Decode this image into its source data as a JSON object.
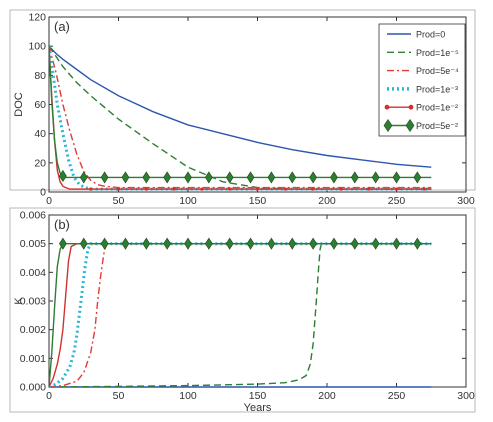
{
  "chart_data": [
    {
      "type": "line",
      "panel_label": "(a)",
      "ylabel": "DOC",
      "xlabel": "",
      "xlim": [
        0,
        300
      ],
      "ylim": [
        0,
        120
      ],
      "xticks": [
        "0",
        "50",
        "100",
        "150",
        "200",
        "250",
        "300"
      ],
      "yticks": [
        "0",
        "20",
        "40",
        "60",
        "80",
        "100",
        "120"
      ],
      "grid": false,
      "legend_position": "top-right",
      "series": [
        {
          "name": "Prod=0",
          "color": "#2b57b0",
          "style": "solid",
          "marker": "none",
          "x": [
            0,
            5,
            10,
            20,
            30,
            50,
            75,
            100,
            125,
            150,
            175,
            200,
            225,
            250,
            275
          ],
          "y": [
            100,
            95,
            91,
            84,
            77,
            66,
            55,
            46,
            40,
            34,
            29,
            25,
            22,
            19,
            17
          ]
        },
        {
          "name": "Prod=1e⁻⁵",
          "color": "#2e7d32",
          "style": "dash",
          "marker": "none",
          "x": [
            0,
            5,
            10,
            20,
            30,
            50,
            75,
            100,
            125,
            150,
            175,
            200,
            225,
            250,
            275
          ],
          "y": [
            100,
            93,
            86,
            75,
            66,
            50,
            33,
            17,
            7,
            3,
            2,
            2,
            2,
            2,
            2
          ]
        },
        {
          "name": "Prod=5e⁻⁴",
          "color": "#e53935",
          "style": "dashdot",
          "marker": "none",
          "x": [
            0,
            5,
            10,
            15,
            20,
            25,
            30,
            35,
            40,
            50,
            75,
            100,
            150,
            200,
            250,
            275
          ],
          "y": [
            100,
            82,
            60,
            42,
            26,
            14,
            8,
            5,
            4,
            3,
            3,
            3,
            3,
            3,
            3,
            3
          ]
        },
        {
          "name": "Prod=1e⁻³",
          "color": "#29b6d6",
          "style": "dotted",
          "marker": "none",
          "x": [
            0,
            3,
            6,
            10,
            14,
            18,
            22,
            26,
            30,
            50,
            100,
            150,
            200,
            250,
            275
          ],
          "y": [
            100,
            80,
            60,
            40,
            22,
            10,
            5,
            3,
            2,
            2,
            2,
            2,
            2,
            2,
            2
          ]
        },
        {
          "name": "Prod=1e⁻²",
          "color": "#d32f2f",
          "style": "solid",
          "marker": "circle",
          "x": [
            0,
            2,
            4,
            6,
            8,
            10,
            12,
            15,
            20,
            50,
            100,
            150,
            200,
            250,
            275
          ],
          "y": [
            100,
            65,
            35,
            15,
            7,
            4,
            3,
            2,
            2,
            2,
            2,
            2,
            2,
            2,
            2
          ]
        },
        {
          "name": "Prod=5e⁻²",
          "color": "#2e7d32",
          "style": "solid",
          "marker": "diamond",
          "x": [
            0,
            2,
            4,
            6,
            8,
            10,
            12,
            15,
            20,
            50,
            100,
            150,
            200,
            250,
            275
          ],
          "y": [
            100,
            62,
            35,
            20,
            13,
            11,
            10,
            10,
            10,
            10,
            10,
            10,
            10,
            10,
            10
          ]
        }
      ],
      "legend": [
        "Prod=0",
        "Prod=1e⁻⁵",
        "Prod=5e⁻⁴",
        "Prod=1e⁻³",
        "Prod=1e⁻²",
        "Prod=5e⁻²"
      ]
    },
    {
      "type": "line",
      "panel_label": "(b)",
      "ylabel": "K",
      "xlabel": "Years",
      "xlim": [
        0,
        300
      ],
      "ylim": [
        0,
        0.006
      ],
      "xticks": [
        "0",
        "50",
        "100",
        "150",
        "200",
        "250",
        "300"
      ],
      "yticks": [
        "0.000",
        "0.001",
        "0.002",
        "0.003",
        "0.004",
        "0.005",
        "0.006"
      ],
      "grid": false,
      "series": [
        {
          "name": "Prod=0",
          "color": "#2b57b0",
          "style": "solid",
          "marker": "none",
          "x": [
            0,
            50,
            100,
            150,
            200,
            250,
            275
          ],
          "y": [
            0,
            0,
            0,
            0,
            0,
            0,
            0
          ]
        },
        {
          "name": "Prod=1e⁻⁵",
          "color": "#2e7d32",
          "style": "dash",
          "marker": "none",
          "x": [
            0,
            50,
            100,
            150,
            170,
            180,
            185,
            188,
            190,
            192,
            194,
            195,
            196,
            200,
            250,
            275
          ],
          "y": [
            0,
            2e-05,
            5e-05,
            0.0001,
            0.00015,
            0.00025,
            0.0004,
            0.0008,
            0.0015,
            0.0028,
            0.0042,
            0.0048,
            0.005,
            0.005,
            0.005,
            0.005
          ]
        },
        {
          "name": "Prod=5e⁻⁴",
          "color": "#e53935",
          "style": "dashdot",
          "marker": "none",
          "x": [
            0,
            10,
            20,
            25,
            30,
            33,
            35,
            37,
            39,
            40,
            42,
            50,
            100,
            150,
            200,
            250,
            275
          ],
          "y": [
            0,
            5e-05,
            0.0002,
            0.0005,
            0.0012,
            0.002,
            0.003,
            0.0038,
            0.0045,
            0.0048,
            0.005,
            0.005,
            0.005,
            0.005,
            0.005,
            0.005,
            0.005
          ]
        },
        {
          "name": "Prod=1e⁻³",
          "color": "#29b6d6",
          "style": "dotted",
          "marker": "none",
          "x": [
            0,
            5,
            10,
            15,
            18,
            20,
            22,
            24,
            26,
            28,
            30,
            50,
            100,
            150,
            200,
            250,
            275
          ],
          "y": [
            0,
            0.0001,
            0.0003,
            0.0007,
            0.0012,
            0.0018,
            0.0026,
            0.0034,
            0.0042,
            0.0048,
            0.005,
            0.005,
            0.005,
            0.005,
            0.005,
            0.005,
            0.005
          ]
        },
        {
          "name": "Prod=1e⁻²",
          "color": "#d32f2f",
          "style": "solid",
          "marker": "none",
          "x": [
            0,
            3,
            6,
            8,
            10,
            11,
            12,
            13,
            14,
            16,
            20,
            50,
            100,
            150,
            200,
            250,
            275
          ],
          "y": [
            0,
            0.0003,
            0.0008,
            0.0013,
            0.002,
            0.0026,
            0.0032,
            0.0038,
            0.0044,
            0.0049,
            0.005,
            0.005,
            0.005,
            0.005,
            0.005,
            0.005,
            0.005
          ]
        },
        {
          "name": "Prod=5e⁻²",
          "color": "#2e7d32",
          "style": "solid",
          "marker": "diamond",
          "x": [
            0,
            2,
            4,
            6,
            8,
            10,
            12,
            15,
            20,
            50,
            100,
            150,
            200,
            250,
            275
          ],
          "y": [
            0,
            0.0012,
            0.0028,
            0.0042,
            0.0048,
            0.005,
            0.005,
            0.005,
            0.005,
            0.005,
            0.005,
            0.005,
            0.005,
            0.005,
            0.005
          ]
        }
      ]
    }
  ]
}
